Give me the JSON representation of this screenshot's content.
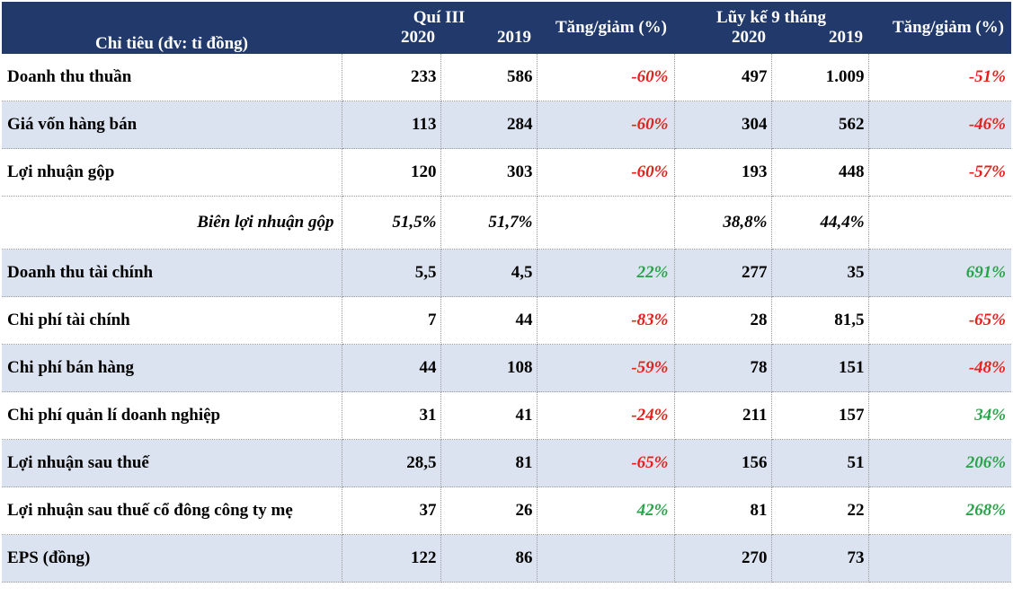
{
  "colors": {
    "header_bg": "#223a6b",
    "row_shade": "#dce3f0",
    "negative": "#e8201c",
    "positive": "#2aa44a"
  },
  "header": {
    "indicator": "Chỉ tiêu (đv: tỉ đồng)",
    "q3": "Quí III",
    "ytd": "Lũy kế 9 tháng",
    "y2020": "2020",
    "y2019": "2019",
    "change": "Tăng/giảm (%)"
  },
  "rows": [
    {
      "label": "Doanh thu thuần",
      "q2020": "233",
      "q2019": "586",
      "qchg": "-60%",
      "y2020": "497",
      "y2019": "1.009",
      "ychg": "-51%"
    },
    {
      "label": "Giá vốn hàng bán",
      "q2020": "113",
      "q2019": "284",
      "qchg": "-60%",
      "y2020": "304",
      "y2019": "562",
      "ychg": "-46%"
    },
    {
      "label": "Lợi nhuận gộp",
      "q2020": "120",
      "q2019": "303",
      "qchg": "-60%",
      "y2020": "193",
      "y2019": "448",
      "ychg": "-57%"
    },
    {
      "label": "Biên lợi nhuận gộp",
      "q2020": "51,5%",
      "q2019": "51,7%",
      "qchg": "",
      "y2020": "38,8%",
      "y2019": "44,4%",
      "ychg": ""
    },
    {
      "label": "Doanh thu tài chính",
      "q2020": "5,5",
      "q2019": "4,5",
      "qchg": "22%",
      "y2020": "277",
      "y2019": "35",
      "ychg": "691%"
    },
    {
      "label": "Chi phí tài chính",
      "q2020": "7",
      "q2019": "44",
      "qchg": "-83%",
      "y2020": "28",
      "y2019": "81,5",
      "ychg": "-65%"
    },
    {
      "label": "Chi phí bán hàng",
      "q2020": "44",
      "q2019": "108",
      "qchg": "-59%",
      "y2020": "78",
      "y2019": "151",
      "ychg": "-48%"
    },
    {
      "label": "Chi phí quản lí doanh nghiệp",
      "q2020": "31",
      "q2019": "41",
      "qchg": "-24%",
      "y2020": "211",
      "y2019": "157",
      "ychg": "34%"
    },
    {
      "label": "Lợi nhuận sau thuế",
      "q2020": "28,5",
      "q2019": "81",
      "qchg": "-65%",
      "y2020": "156",
      "y2019": "51",
      "ychg": "206%"
    },
    {
      "label": "Lợi nhuận sau thuế cổ đông công ty mẹ",
      "q2020": "37",
      "q2019": "26",
      "qchg": "42%",
      "y2020": "81",
      "y2019": "22",
      "ychg": "268%"
    },
    {
      "label": "EPS (đồng)",
      "q2020": "122",
      "q2019": "86",
      "qchg": "",
      "y2020": "270",
      "y2019": "73",
      "ychg": ""
    }
  ]
}
